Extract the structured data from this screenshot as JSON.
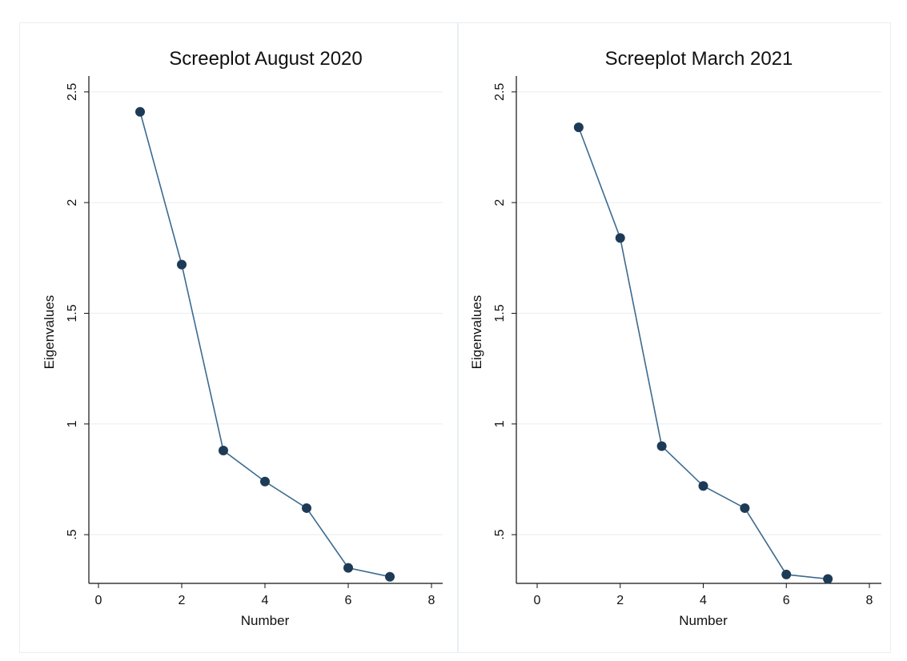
{
  "chart_data": [
    {
      "type": "line",
      "title": "Screeplot August 2020",
      "xlabel": "Number",
      "ylabel": "Eigenvalues",
      "xlim": [
        0,
        8
      ],
      "ylim": [
        0.28,
        2.55
      ],
      "xticks": [
        0,
        2,
        4,
        6,
        8
      ],
      "xtick_labels": [
        "0",
        "2",
        "4",
        "6",
        "8"
      ],
      "yticks": [
        0.5,
        1,
        1.5,
        2,
        2.5
      ],
      "ytick_labels": [
        ".5",
        "1",
        "1.5",
        "2",
        "2.5"
      ],
      "grid": true,
      "series": [
        {
          "x": [
            1,
            2,
            3,
            4,
            5,
            6,
            7
          ],
          "values": [
            2.41,
            1.72,
            0.88,
            0.74,
            0.62,
            0.35,
            0.31
          ]
        }
      ]
    },
    {
      "type": "line",
      "title": "Screeplot March 2021",
      "xlabel": "Number",
      "ylabel": "Eigenvalues",
      "xlim": [
        0,
        8
      ],
      "ylim": [
        0.28,
        2.55
      ],
      "xticks": [
        0,
        2,
        4,
        6,
        8
      ],
      "xtick_labels": [
        "0",
        "2",
        "4",
        "6",
        "8"
      ],
      "yticks": [
        0.5,
        1,
        1.5,
        2,
        2.5
      ],
      "ytick_labels": [
        ".5",
        "1",
        "1.5",
        "2",
        "2.5"
      ],
      "grid": true,
      "series": [
        {
          "x": [
            1,
            2,
            3,
            4,
            5,
            6,
            7
          ],
          "values": [
            2.34,
            1.84,
            0.9,
            0.72,
            0.62,
            0.32,
            0.3
          ]
        }
      ]
    }
  ],
  "colors": {
    "line": "#3c6a8f",
    "marker": "#1d3b56",
    "grid": "#e6eef2",
    "axis": "#111111"
  }
}
